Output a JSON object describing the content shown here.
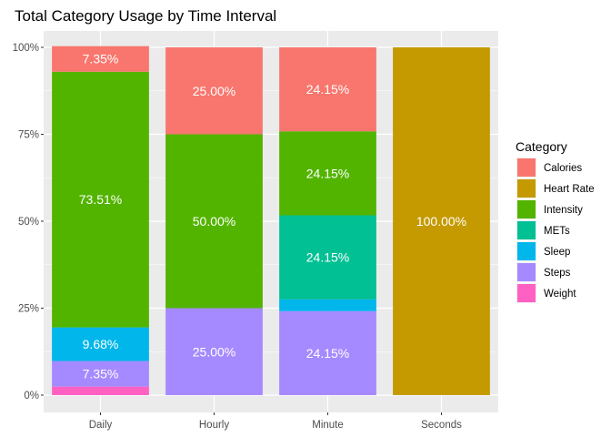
{
  "chart_data": {
    "type": "bar",
    "stacked": true,
    "title": "Total Category Usage by Time Interval",
    "xlabel": "",
    "ylabel": "",
    "ylim": [
      0,
      1
    ],
    "y_ticks": [
      "0%",
      "25%",
      "50%",
      "75%",
      "100%"
    ],
    "y_tick_values": [
      0,
      0.25,
      0.5,
      0.75,
      1
    ],
    "categories": [
      "Daily",
      "Hourly",
      "Minute",
      "Seconds"
    ],
    "legend_title": "Category",
    "legend_position": "right",
    "grid": true,
    "series": [
      {
        "name": "Weight",
        "color": "#FF61C3",
        "values": [
          0.0245,
          0,
          0,
          0
        ],
        "labels": [
          "",
          "",
          "",
          ""
        ]
      },
      {
        "name": "Steps",
        "color": "#A58AFF",
        "values": [
          0.0735,
          0.25,
          0.2415,
          0
        ],
        "labels": [
          "7.35%",
          "25.00%",
          "24.15%",
          ""
        ]
      },
      {
        "name": "Sleep",
        "color": "#00B6EB",
        "values": [
          0.0968,
          0,
          0.034,
          0
        ],
        "labels": [
          "9.68%",
          "",
          "",
          ""
        ]
      },
      {
        "name": "METs",
        "color": "#00C094",
        "values": [
          0,
          0,
          0.2415,
          0
        ],
        "labels": [
          "",
          "",
          "24.15%",
          ""
        ]
      },
      {
        "name": "Intensity",
        "color": "#53B400",
        "values": [
          0.7351,
          0.5,
          0.2415,
          0
        ],
        "labels": [
          "73.51%",
          "50.00%",
          "24.15%",
          ""
        ]
      },
      {
        "name": "Heart Rate",
        "color": "#C49A00",
        "values": [
          0,
          0,
          0,
          1.0
        ],
        "labels": [
          "",
          "",
          "",
          "100.00%"
        ]
      },
      {
        "name": "Calories",
        "color": "#F8766D",
        "values": [
          0.0735,
          0.25,
          0.2415,
          0
        ],
        "labels": [
          "7.35%",
          "25.00%",
          "24.15%",
          ""
        ]
      }
    ],
    "legend_order": [
      "Calories",
      "Heart Rate",
      "Intensity",
      "METs",
      "Sleep",
      "Steps",
      "Weight"
    ]
  }
}
